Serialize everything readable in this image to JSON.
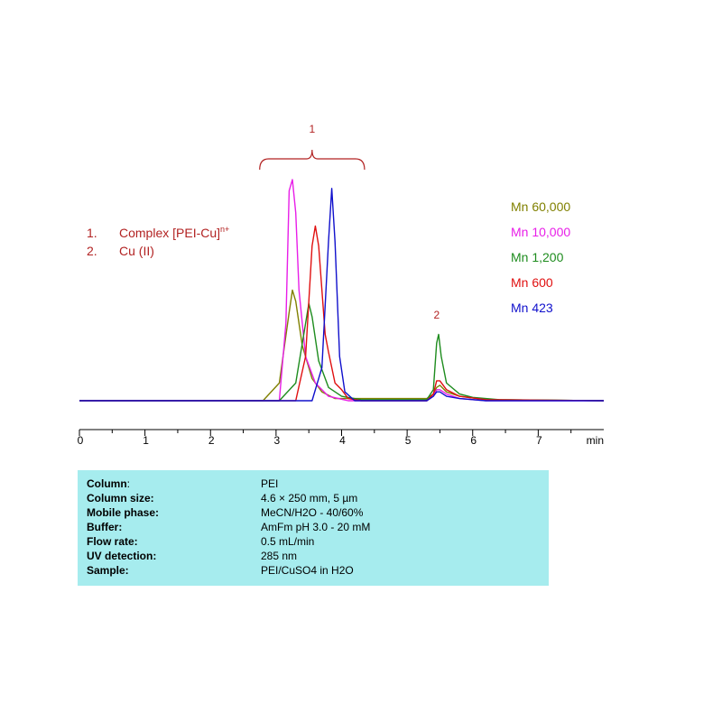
{
  "chart_data": {
    "type": "line",
    "xlabel": "min",
    "xlim": [
      0,
      8
    ],
    "xticks": [
      "0",
      "1",
      "2",
      "3",
      "4",
      "5",
      "6",
      "7"
    ],
    "series": [
      {
        "name": "Mn 60,000",
        "color": "#808000",
        "x": [
          0,
          2.8,
          3.05,
          3.2,
          3.25,
          3.3,
          3.4,
          3.55,
          3.7,
          3.9,
          4.2,
          5.3,
          5.4,
          5.45,
          5.5,
          5.6,
          5.8,
          6.2,
          8
        ],
        "y": [
          0,
          0,
          0.08,
          0.4,
          0.5,
          0.45,
          0.25,
          0.1,
          0.04,
          0.01,
          0.01,
          0.01,
          0.03,
          0.06,
          0.07,
          0.04,
          0.02,
          0.005,
          0
        ]
      },
      {
        "name": "Mn 10,000",
        "color": "#e81ee8",
        "x": [
          0,
          3.05,
          3.15,
          3.2,
          3.25,
          3.3,
          3.35,
          3.45,
          3.6,
          3.8,
          4.1,
          5.3,
          5.4,
          5.45,
          5.5,
          5.6,
          5.8,
          6.2,
          8
        ],
        "y": [
          0,
          0,
          0.35,
          0.95,
          1.0,
          0.85,
          0.5,
          0.2,
          0.08,
          0.02,
          0,
          0,
          0.02,
          0.05,
          0.05,
          0.03,
          0.01,
          0,
          0
        ]
      },
      {
        "name": "Mn 1,200",
        "color": "#1e8c1e",
        "x": [
          0,
          3.05,
          3.3,
          3.45,
          3.5,
          3.55,
          3.65,
          3.8,
          4.0,
          4.3,
          5.3,
          5.4,
          5.45,
          5.48,
          5.52,
          5.6,
          5.8,
          6.0,
          6.4,
          8
        ],
        "y": [
          0,
          0,
          0.08,
          0.35,
          0.44,
          0.38,
          0.18,
          0.06,
          0.02,
          0.005,
          0.005,
          0.05,
          0.26,
          0.3,
          0.2,
          0.08,
          0.03,
          0.015,
          0.005,
          0
        ]
      },
      {
        "name": "Mn 600",
        "color": "#e01010",
        "x": [
          0,
          3.3,
          3.45,
          3.55,
          3.6,
          3.65,
          3.75,
          3.8,
          3.9,
          4.0,
          4.1,
          4.3,
          5.3,
          5.4,
          5.45,
          5.5,
          5.6,
          5.8,
          6.2,
          8
        ],
        "y": [
          0,
          0,
          0.2,
          0.7,
          0.79,
          0.7,
          0.3,
          0.22,
          0.08,
          0.05,
          0.01,
          0,
          0,
          0.03,
          0.09,
          0.09,
          0.05,
          0.02,
          0.005,
          0
        ]
      },
      {
        "name": "Mn 423",
        "color": "#1010cc",
        "x": [
          0,
          3.55,
          3.7,
          3.8,
          3.85,
          3.9,
          3.97,
          4.05,
          4.2,
          5.3,
          5.4,
          5.45,
          5.5,
          5.6,
          5.8,
          6.2,
          8
        ],
        "y": [
          0,
          0,
          0.15,
          0.72,
          0.96,
          0.72,
          0.2,
          0.04,
          0,
          0,
          0.02,
          0.04,
          0.04,
          0.02,
          0.01,
          0,
          0
        ]
      }
    ],
    "peak_labels": [
      {
        "text": "1",
        "x_from": 2.75,
        "x_to": 4.35
      },
      {
        "text": "2",
        "x": 5.45,
        "y": 0.36
      }
    ],
    "legend": [
      "Mn 60,000",
      "Mn 10,000",
      "Mn 1,200",
      "Mn 600",
      "Mn 423"
    ],
    "legend_position": "right",
    "grid": false
  },
  "annotation": {
    "items": [
      {
        "num": "1.",
        "label": "Complex [PEI-Cu]",
        "sup": "n+"
      },
      {
        "num": "2.",
        "label": "Cu (II)",
        "sup": ""
      }
    ]
  },
  "conditions": {
    "rows": [
      {
        "key": "Column",
        "colon": ":",
        "value": "PEI"
      },
      {
        "key": "Column size:",
        "colon": "",
        "value": "4.6 × 250 mm, 5 µm"
      },
      {
        "key": "Mobile phase:",
        "colon": "",
        "value": "MeCN/H2O - 40/60%"
      },
      {
        "key": "Buffer:",
        "colon": "",
        "value": "AmFm pH 3.0 - 20 mM"
      },
      {
        "key": "Flow rate:",
        "colon": "",
        "value": "0.5 mL/min"
      },
      {
        "key": "UV detection:",
        "colon": "",
        "value": "285 nm"
      },
      {
        "key": "Sample:",
        "colon": "",
        "value": "PEI/CuSO4 in H2O"
      }
    ]
  }
}
